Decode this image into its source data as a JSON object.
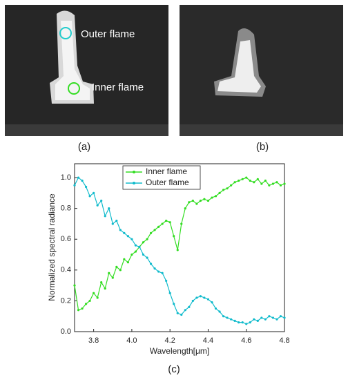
{
  "figure": {
    "image_a": {
      "outer_label": "Outer flame",
      "inner_label": "Inner flame",
      "caption": "(a)"
    },
    "image_b": {
      "caption": "(b)"
    }
  },
  "chart_data": {
    "type": "line",
    "caption": "(c)",
    "x_label": "Wavelength[μm]",
    "y_label": "Normalized spectral radiance",
    "xlim": [
      3.7,
      4.8
    ],
    "ylim": [
      0,
      1.09
    ],
    "xticks": [
      3.8,
      {
        "value": 4,
        "label": "4.0"
      },
      4.2,
      4.4,
      4.6,
      4.8
    ],
    "yticks": [
      {
        "value": 0,
        "label": "0.0"
      },
      0.2,
      0.4,
      0.6,
      0.8,
      {
        "value": 1,
        "label": "1.0"
      }
    ],
    "grid": false,
    "legend": "top",
    "x": [
      3.7,
      3.72,
      3.74,
      3.76,
      3.78,
      3.8,
      3.82,
      3.84,
      3.86,
      3.88,
      3.9,
      3.92,
      3.94,
      3.96,
      3.98,
      4.0,
      4.02,
      4.04,
      4.06,
      4.08,
      4.1,
      4.12,
      4.14,
      4.16,
      4.18,
      4.2,
      4.22,
      4.24,
      4.26,
      4.28,
      4.3,
      4.32,
      4.34,
      4.36,
      4.38,
      4.4,
      4.42,
      4.44,
      4.46,
      4.48,
      4.5,
      4.52,
      4.54,
      4.56,
      4.58,
      4.6,
      4.62,
      4.64,
      4.66,
      4.68,
      4.7,
      4.72,
      4.74,
      4.76,
      4.78,
      4.8
    ],
    "series": [
      {
        "name": "Inner flame",
        "color": "#33dd22",
        "values": [
          0.3,
          0.14,
          0.15,
          0.18,
          0.2,
          0.25,
          0.22,
          0.32,
          0.28,
          0.38,
          0.35,
          0.42,
          0.4,
          0.47,
          0.45,
          0.5,
          0.52,
          0.55,
          0.58,
          0.6,
          0.64,
          0.66,
          0.68,
          0.7,
          0.72,
          0.71,
          0.62,
          0.53,
          0.7,
          0.8,
          0.84,
          0.85,
          0.83,
          0.85,
          0.86,
          0.85,
          0.87,
          0.88,
          0.9,
          0.92,
          0.93,
          0.95,
          0.97,
          0.98,
          0.99,
          1.0,
          0.98,
          0.97,
          0.99,
          0.96,
          0.98,
          0.95,
          0.96,
          0.97,
          0.95,
          0.96
        ]
      },
      {
        "name": "Outer flame",
        "color": "#11bbcc",
        "values": [
          0.95,
          1.0,
          0.98,
          0.94,
          0.88,
          0.9,
          0.82,
          0.85,
          0.75,
          0.8,
          0.7,
          0.72,
          0.66,
          0.64,
          0.62,
          0.6,
          0.56,
          0.55,
          0.5,
          0.48,
          0.44,
          0.41,
          0.39,
          0.38,
          0.33,
          0.25,
          0.18,
          0.12,
          0.11,
          0.14,
          0.16,
          0.2,
          0.22,
          0.23,
          0.22,
          0.21,
          0.19,
          0.15,
          0.13,
          0.1,
          0.09,
          0.08,
          0.07,
          0.06,
          0.06,
          0.05,
          0.06,
          0.08,
          0.07,
          0.09,
          0.08,
          0.1,
          0.09,
          0.08,
          0.1,
          0.09
        ]
      }
    ]
  }
}
